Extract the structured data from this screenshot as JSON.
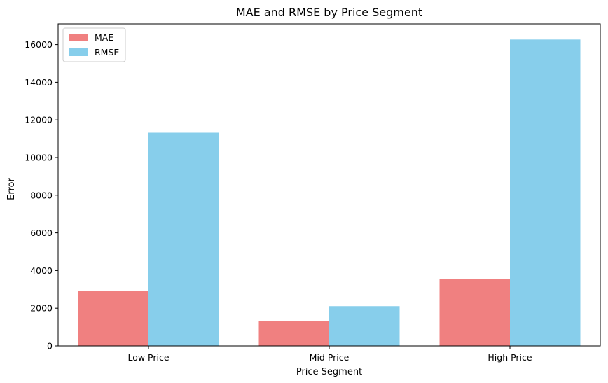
{
  "chart_data": {
    "type": "bar",
    "title": "MAE and RMSE by Price Segment",
    "xlabel": "Price Segment",
    "ylabel": "Error",
    "categories": [
      "Low Price",
      "Mid Price",
      "High Price"
    ],
    "series": [
      {
        "name": "MAE",
        "color": "#f08080",
        "values": [
          2900,
          1330,
          3560
        ]
      },
      {
        "name": "RMSE",
        "color": "#87ceeb",
        "values": [
          11320,
          2110,
          16270
        ]
      }
    ],
    "ylim": [
      0,
      17100
    ],
    "yticks": [
      0,
      2000,
      4000,
      6000,
      8000,
      10000,
      12000,
      14000,
      16000
    ],
    "grid": false,
    "legend_position": "top-left"
  }
}
